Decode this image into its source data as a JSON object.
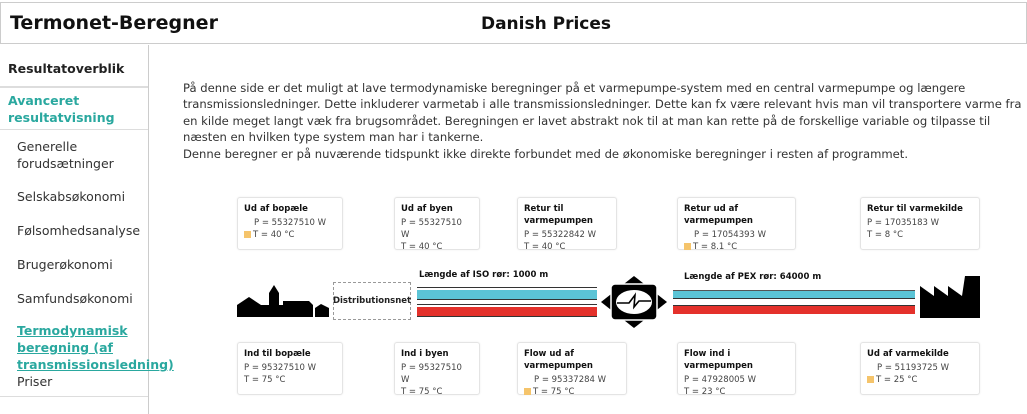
{
  "header": {
    "app_title": "Termonet-Beregner",
    "page_title": "Danish Prices"
  },
  "sidebar": {
    "overview": "Resultatoverblik",
    "advanced": "Avanceret resultatvisning",
    "items": [
      {
        "label": "Generelle forudsætninger"
      },
      {
        "label": "Selskabsøkonomi"
      },
      {
        "label": "Følsomhedsanalyse"
      },
      {
        "label": "Brugerøkonomi"
      },
      {
        "label": "Samfundsøkonomi"
      },
      {
        "label": "Termodynamisk beregning (af transmissionsledning)",
        "active": true
      },
      {
        "label": "Priser"
      }
    ]
  },
  "intro": {
    "p1": "På denne side er det muligt at lave termodynamiske beregninger på et varmepumpe-system med en central varmepumpe og længere transmissionsledninger. Dette inkluderer varmetab i alle transmissionsledninger. Dette kan fx være relevant hvis man vil transportere varme fra en kilde meget langt væk fra brugsområdet. Beregningen er lavet abstrakt nok til at man kan rette på de forskellige variable og tilpasse til næsten en hvilken type system man har i tankerne.",
    "p2": "Denne beregner er på nuværende tidspunkt ikke direkte forbundet med de økonomiske beregninger i resten af programmet."
  },
  "top_boxes": [
    {
      "title": "Ud af bopæle",
      "p": "P = 55327510 W",
      "t": "T = 40 °C",
      "marker": true
    },
    {
      "title": "Ud af byen",
      "p": "P = 55327510 W",
      "t": "T = 40 °C",
      "marker": false
    },
    {
      "title": "Retur til varmepumpen",
      "p": "P = 55322842 W",
      "t": "T = 40 °C",
      "marker": false
    },
    {
      "title": "Retur ud af varmepumpen",
      "p": "P = 17054393 W",
      "t": "T = 8.1 °C",
      "marker": true
    },
    {
      "title": "Retur til varmekilde",
      "p": "P = 17035183 W",
      "t": "T = 8 °C",
      "marker": false
    }
  ],
  "bottom_boxes": [
    {
      "title": "Ind til bopæle",
      "p": "P = 95327510 W",
      "t": "T = 75 °C",
      "marker": false
    },
    {
      "title": "Ind i byen",
      "p": "P = 95327510 W",
      "t": "T = 75 °C",
      "marker": false
    },
    {
      "title": "Flow ud af varmepumpen",
      "p": "P = 95337284 W",
      "t": "T = 75 °C",
      "marker": true
    },
    {
      "title": "Flow ind i varmepumpen",
      "p": "P = 47928005 W",
      "t": "T = 23 °C",
      "marker": false
    },
    {
      "title": "Ud af varmekilde",
      "p": "P = 51193725 W",
      "t": "T = 25 °C",
      "marker": true
    }
  ],
  "diagram": {
    "distribution": "Distributionsnet",
    "iso_label": "Længde af ISO rør: 1000 m",
    "pex_label": "Længde af PEX rør: 64000 m"
  },
  "colors": {
    "accent": "#2aa89f",
    "cold_pipe": "#5bc4d6",
    "hot_pipe": "#e4312b",
    "marker": "#f5c46b"
  }
}
